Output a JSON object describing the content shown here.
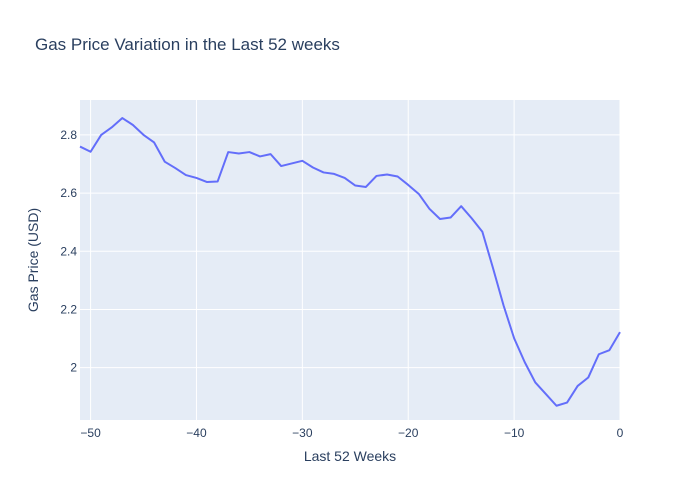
{
  "chart_data": {
    "type": "line",
    "title": "Gas Price Variation in the Last 52 weeks",
    "xlabel": "Last 52 Weeks",
    "ylabel": "Gas Price (USD)",
    "xlim": [
      -51,
      0
    ],
    "ylim": [
      1.82,
      2.92
    ],
    "x_ticks": [
      -50,
      -40,
      -30,
      -20,
      -10,
      0
    ],
    "x_tick_labels": [
      "−50",
      "−40",
      "−30",
      "−20",
      "−10",
      "0"
    ],
    "y_ticks": [
      2.0,
      2.2,
      2.4,
      2.6,
      2.8
    ],
    "y_tick_labels": [
      "2",
      "2.2",
      "2.4",
      "2.6",
      "2.8"
    ],
    "grid": true,
    "colors": {
      "line": "#636efa",
      "plot_bg": "#e5ecf6",
      "grid": "#ffffff",
      "text": "#2a3f5f"
    },
    "series": [
      {
        "x": [
          -51,
          -50,
          -49,
          -48,
          -47,
          -46,
          -45,
          -44,
          -43,
          -42,
          -41,
          -40,
          -39,
          -38,
          -37,
          -36,
          -35,
          -34,
          -33,
          -32,
          -31,
          -30,
          -29,
          -28,
          -27,
          -26,
          -25,
          -24,
          -23,
          -22,
          -21,
          -20,
          -19,
          -18,
          -17,
          -16,
          -15,
          -14,
          -13,
          -12,
          -11,
          -10,
          -9,
          -8,
          -7,
          -6,
          -5,
          -4,
          -3,
          -2,
          -1,
          0
        ],
        "y": [
          2.76,
          2.742,
          2.8,
          2.826,
          2.858,
          2.834,
          2.8,
          2.774,
          2.708,
          2.686,
          2.662,
          2.652,
          2.638,
          2.64,
          2.741,
          2.736,
          2.741,
          2.726,
          2.734,
          2.693,
          2.702,
          2.711,
          2.688,
          2.671,
          2.666,
          2.652,
          2.626,
          2.621,
          2.659,
          2.664,
          2.657,
          2.628,
          2.597,
          2.546,
          2.511,
          2.516,
          2.555,
          2.513,
          2.467,
          2.343,
          2.214,
          2.101,
          2.019,
          1.949,
          1.909,
          1.869,
          1.88,
          1.937,
          1.966,
          2.046,
          2.06,
          2.122
        ]
      }
    ]
  }
}
